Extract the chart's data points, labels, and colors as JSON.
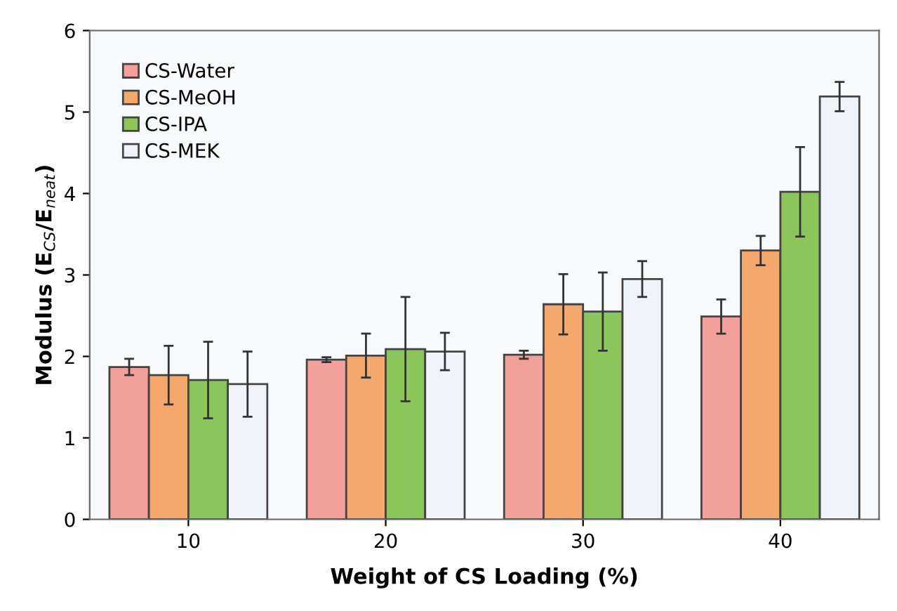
{
  "chart_data": {
    "type": "bar",
    "xlabel": "Weight of CS Loading (%)",
    "ylabel": "Modulus (E$_{CS}$/E$_{neat}$)",
    "categories": [
      "10",
      "20",
      "30",
      "40"
    ],
    "series": [
      {
        "name": "CS-Water",
        "color": "#f4a09a",
        "values": [
          1.87,
          1.96,
          2.02,
          2.49
        ],
        "errors": [
          0.1,
          0.03,
          0.05,
          0.21
        ]
      },
      {
        "name": "CS-MeOH",
        "color": "#f5a86c",
        "values": [
          1.77,
          2.01,
          2.64,
          3.3
        ],
        "errors": [
          0.36,
          0.27,
          0.37,
          0.18
        ]
      },
      {
        "name": "CS-IPA",
        "color": "#8cc65a",
        "values": [
          1.71,
          2.09,
          2.55,
          4.02
        ],
        "errors": [
          0.47,
          0.64,
          0.48,
          0.55
        ]
      },
      {
        "name": "CS-MEK",
        "color": "#f0f4fa",
        "values": [
          1.66,
          2.06,
          2.95,
          5.19
        ],
        "errors": [
          0.4,
          0.23,
          0.22,
          0.18
        ]
      }
    ],
    "ylim": [
      0,
      6
    ],
    "yticks": [
      0,
      1,
      2,
      3,
      4,
      5,
      6
    ],
    "legend": "top left",
    "grid": false
  }
}
